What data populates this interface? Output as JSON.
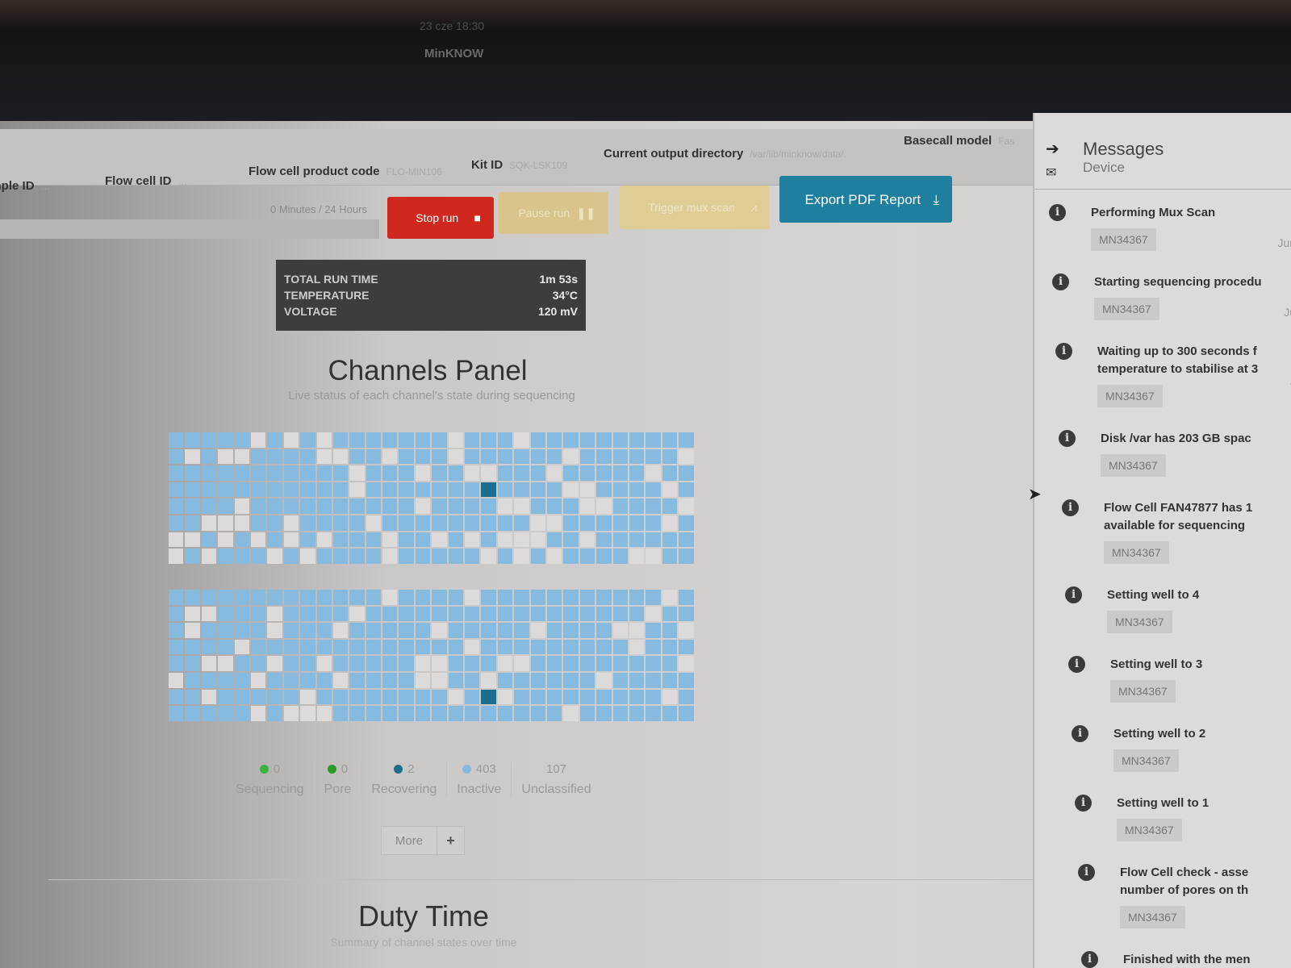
{
  "os": {
    "clock": "23 cze 18:30",
    "app_title": "MinKNOW"
  },
  "header": {
    "fields": [
      {
        "label": "Sample ID",
        "value": "…"
      },
      {
        "label": "Flow cell ID",
        "value": "…"
      },
      {
        "label": "Flow cell product code",
        "value": "FLO-MIN106"
      },
      {
        "label": "Kit ID",
        "value": "SQK-LSK109"
      },
      {
        "label": "Current output directory",
        "value": "/var/lib/minknow/data/."
      },
      {
        "label": "Basecall model",
        "value": "Fas"
      }
    ]
  },
  "run": {
    "progress_label": "0 Minutes / 24 Hours",
    "progress_fraction": 0,
    "stop": "Stop run",
    "pause": "Pause run",
    "mux": "Trigger mux scan",
    "export": "Export PDF Report"
  },
  "stats": {
    "labels": [
      "TOTAL RUN TIME",
      "TEMPERATURE",
      "VOLTAGE"
    ],
    "values": [
      "1m 53s",
      "34°C",
      "120 mV"
    ]
  },
  "channels": {
    "title": "Channels Panel",
    "subtitle": "Live status of each channel's state during sequencing",
    "legend": [
      {
        "count": "0",
        "label": "Sequencing",
        "color": "#3cb043"
      },
      {
        "count": "0",
        "label": "Pore",
        "color": "#2a9a2a"
      },
      {
        "count": "2",
        "label": "Recovering",
        "color": "#1c6e8c"
      },
      {
        "count": "403",
        "label": "Inactive",
        "color": "#86bbdf"
      },
      {
        "count": "107",
        "label": "Unclassified",
        "color": ""
      }
    ],
    "more": "More",
    "more_icon": "+"
  },
  "duty": {
    "title": "Duty Time",
    "subtitle": "Summary of channel states over time"
  },
  "messages": {
    "title": "Messages",
    "subtitle": "Device",
    "items": [
      {
        "text": "Performing Mux Scan",
        "device": "MN34367",
        "date": "Jun"
      },
      {
        "text": "Starting sequencing procedu",
        "device": "MN34367",
        "date": "Ju"
      },
      {
        "text": "Waiting up to 300 seconds f\ntemperature to stabilise at 3",
        "device": "MN34367",
        "date": "J"
      },
      {
        "text": "Disk /var has 203 GB spac",
        "device": "MN34367",
        "date": ""
      },
      {
        "text": "Flow Cell FAN47877 has 1\navailable for sequencing",
        "device": "MN34367",
        "date": ""
      },
      {
        "text": "Setting well to 4",
        "device": "MN34367",
        "date": ""
      },
      {
        "text": "Setting well to 3",
        "device": "MN34367",
        "date": ""
      },
      {
        "text": "Setting well to 2",
        "device": "MN34367",
        "date": ""
      },
      {
        "text": "Setting well to 1",
        "device": "MN34367",
        "date": ""
      },
      {
        "text": "Flow Cell check - asse\nnumber of pores on th",
        "device": "MN34367",
        "date": ""
      },
      {
        "text": "Finished with the men\nprocedure",
        "device": "",
        "date": ""
      }
    ]
  }
}
